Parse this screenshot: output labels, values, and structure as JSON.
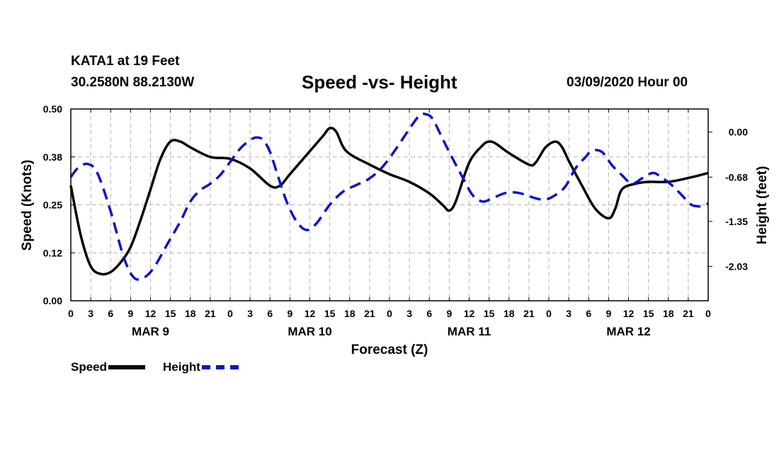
{
  "header": {
    "station": "KATA1 at 19 Feet",
    "coords": "30.2580N 88.2130W",
    "title": "Speed -vs- Height",
    "date": "03/09/2020 Hour 00"
  },
  "legend": {
    "speed_label": "Speed",
    "height_label": "Height",
    "speed_color": "#000000",
    "height_color": "#0a14c8"
  },
  "chart_data": {
    "type": "line",
    "title": "Speed -vs- Height",
    "xlabel": "Forecast (Z)",
    "ylabel": "Speed (Knots)",
    "y2label": "Height (feet)",
    "xlim": [
      0,
      96
    ],
    "ylim": [
      0,
      0.5
    ],
    "y2lim": [
      -2.55,
      0.35
    ],
    "yticks": [
      "0.00",
      "0.12",
      "0.25",
      "0.38",
      "0.50"
    ],
    "y2ticks": [
      {
        "value": 0.0,
        "label": "0.00"
      },
      {
        "value": -0.68,
        "label": "-0.68"
      },
      {
        "value": -1.35,
        "label": "-1.35"
      },
      {
        "value": -2.03,
        "label": "-2.03"
      }
    ],
    "xticks": [
      "0",
      "3",
      "6",
      "9",
      "12",
      "15",
      "18",
      "21",
      "0",
      "3",
      "6",
      "9",
      "12",
      "15",
      "18",
      "21",
      "0",
      "3",
      "6",
      "9",
      "12",
      "15",
      "18",
      "21",
      "0",
      "3",
      "6",
      "9",
      "12",
      "15",
      "18",
      "21",
      "0"
    ],
    "day_labels": [
      {
        "hour": 12,
        "label": "MAR 9"
      },
      {
        "hour": 36,
        "label": "MAR 10"
      },
      {
        "hour": 60,
        "label": "MAR 11"
      },
      {
        "hour": 84,
        "label": "MAR 12"
      }
    ],
    "grid": true,
    "series": [
      {
        "name": "Speed",
        "axis": "left",
        "color": "#000000",
        "dash": "solid",
        "points": [
          [
            0,
            0.3
          ],
          [
            1.5,
            0.17
          ],
          [
            3,
            0.09
          ],
          [
            4.5,
            0.07
          ],
          [
            6,
            0.075
          ],
          [
            7.5,
            0.1
          ],
          [
            9,
            0.14
          ],
          [
            10.5,
            0.21
          ],
          [
            12,
            0.29
          ],
          [
            13.5,
            0.37
          ],
          [
            15,
            0.415
          ],
          [
            16.5,
            0.415
          ],
          [
            18,
            0.4
          ],
          [
            21,
            0.375
          ],
          [
            24,
            0.37
          ],
          [
            27,
            0.345
          ],
          [
            30,
            0.3
          ],
          [
            31.5,
            0.3
          ],
          [
            33,
            0.33
          ],
          [
            36,
            0.39
          ],
          [
            38,
            0.43
          ],
          [
            39,
            0.45
          ],
          [
            40,
            0.44
          ],
          [
            41.5,
            0.39
          ],
          [
            45,
            0.355
          ],
          [
            48,
            0.33
          ],
          [
            51,
            0.31
          ],
          [
            54,
            0.28
          ],
          [
            56,
            0.25
          ],
          [
            57,
            0.235
          ],
          [
            58,
            0.26
          ],
          [
            60,
            0.36
          ],
          [
            62,
            0.405
          ],
          [
            63,
            0.415
          ],
          [
            64,
            0.41
          ],
          [
            66,
            0.385
          ],
          [
            69,
            0.355
          ],
          [
            70,
            0.36
          ],
          [
            71.5,
            0.4
          ],
          [
            73,
            0.415
          ],
          [
            74,
            0.4
          ],
          [
            75,
            0.365
          ],
          [
            77,
            0.3
          ],
          [
            79,
            0.24
          ],
          [
            81,
            0.215
          ],
          [
            82,
            0.24
          ],
          [
            83,
            0.29
          ],
          [
            85,
            0.305
          ],
          [
            87,
            0.31
          ],
          [
            90,
            0.31
          ],
          [
            93,
            0.32
          ],
          [
            96,
            0.333
          ]
        ]
      },
      {
        "name": "Height",
        "axis": "right",
        "color": "#0a14c8",
        "dash": "dashed",
        "points": [
          [
            0,
            -0.68
          ],
          [
            1,
            -0.55
          ],
          [
            2.5,
            -0.48
          ],
          [
            4,
            -0.62
          ],
          [
            6,
            -1.2
          ],
          [
            8,
            -1.9
          ],
          [
            9.5,
            -2.2
          ],
          [
            11,
            -2.2
          ],
          [
            12.5,
            -2.05
          ],
          [
            14.5,
            -1.7
          ],
          [
            16.5,
            -1.35
          ],
          [
            18,
            -1.05
          ],
          [
            19.5,
            -0.88
          ],
          [
            21,
            -0.78
          ],
          [
            22.5,
            -0.65
          ],
          [
            24,
            -0.45
          ],
          [
            25.5,
            -0.25
          ],
          [
            27,
            -0.12
          ],
          [
            28,
            -0.08
          ],
          [
            29,
            -0.12
          ],
          [
            30,
            -0.3
          ],
          [
            31,
            -0.6
          ],
          [
            32.5,
            -1.05
          ],
          [
            34,
            -1.35
          ],
          [
            35.5,
            -1.48
          ],
          [
            37,
            -1.38
          ],
          [
            39,
            -1.1
          ],
          [
            41,
            -0.9
          ],
          [
            43,
            -0.8
          ],
          [
            45,
            -0.7
          ],
          [
            47,
            -0.52
          ],
          [
            49,
            -0.25
          ],
          [
            51,
            0.05
          ],
          [
            52.5,
            0.25
          ],
          [
            53.5,
            0.27
          ],
          [
            54.5,
            0.2
          ],
          [
            56,
            -0.1
          ],
          [
            57.5,
            -0.4
          ],
          [
            59,
            -0.68
          ],
          [
            60.5,
            -0.95
          ],
          [
            62,
            -1.05
          ],
          [
            63.5,
            -1.0
          ],
          [
            65.5,
            -0.92
          ],
          [
            67.5,
            -0.92
          ],
          [
            70,
            -1.0
          ],
          [
            71.5,
            -1.02
          ],
          [
            73,
            -0.95
          ],
          [
            74.5,
            -0.82
          ],
          [
            76,
            -0.55
          ],
          [
            77.5,
            -0.38
          ],
          [
            78.5,
            -0.28
          ],
          [
            80,
            -0.3
          ],
          [
            81.5,
            -0.5
          ],
          [
            83,
            -0.65
          ],
          [
            84.5,
            -0.78
          ],
          [
            86,
            -0.7
          ],
          [
            87.5,
            -0.62
          ],
          [
            88.5,
            -0.65
          ],
          [
            90.5,
            -0.8
          ],
          [
            92,
            -0.95
          ],
          [
            93.5,
            -1.1
          ],
          [
            95,
            -1.12
          ],
          [
            96,
            -1.08
          ]
        ]
      }
    ]
  }
}
